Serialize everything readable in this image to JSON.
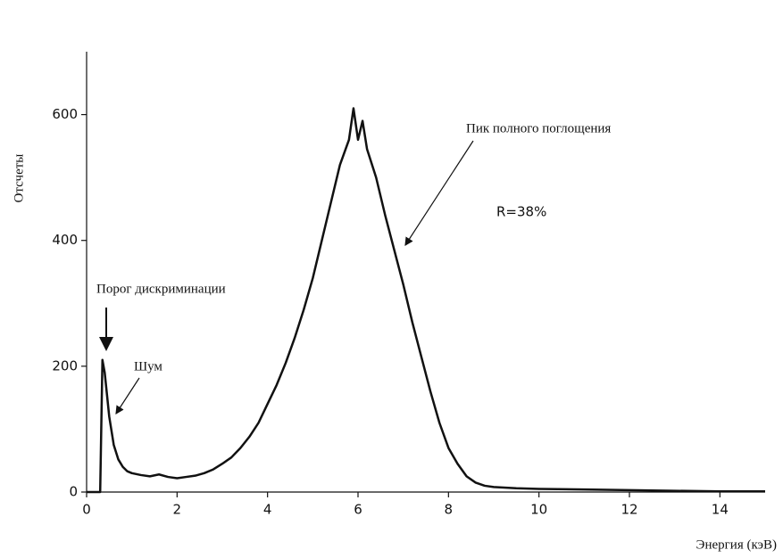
{
  "chart_data": {
    "type": "line",
    "x_label": "Энергия (кэВ)",
    "y_label": "Отсчеты",
    "x": [
      0,
      0.1,
      0.2,
      0.3,
      0.35,
      0.4,
      0.5,
      0.6,
      0.7,
      0.8,
      0.9,
      1.0,
      1.2,
      1.4,
      1.6,
      1.8,
      2.0,
      2.2,
      2.4,
      2.6,
      2.8,
      3.0,
      3.2,
      3.4,
      3.6,
      3.8,
      4.0,
      4.2,
      4.4,
      4.6,
      4.8,
      5.0,
      5.2,
      5.4,
      5.6,
      5.8,
      5.9,
      6.0,
      6.1,
      6.2,
      6.4,
      6.6,
      6.8,
      7.0,
      7.2,
      7.4,
      7.6,
      7.8,
      8.0,
      8.2,
      8.4,
      8.6,
      8.8,
      9.0,
      9.5,
      10,
      11,
      12,
      13,
      14,
      15
    ],
    "series": [
      {
        "color": "#111111",
        "values": [
          0,
          0,
          0,
          0,
          210,
          190,
          120,
          75,
          52,
          40,
          33,
          30,
          27,
          25,
          28,
          24,
          22,
          24,
          26,
          30,
          36,
          45,
          55,
          70,
          88,
          110,
          140,
          170,
          205,
          245,
          290,
          340,
          400,
          460,
          520,
          560,
          610,
          560,
          590,
          545,
          500,
          440,
          385,
          330,
          270,
          215,
          160,
          110,
          70,
          45,
          25,
          15,
          10,
          8,
          6,
          5,
          4,
          3,
          2,
          1,
          1
        ]
      }
    ],
    "xlim": [
      0,
      15
    ],
    "ylim": [
      0,
      700
    ],
    "xticks": [
      0,
      2,
      4,
      6,
      8,
      10,
      12,
      14
    ],
    "yticks": [
      0,
      200,
      400,
      600
    ],
    "annotations": [
      "Порог дискриминации",
      "Шум",
      "Пик полного поглощения",
      "R=38%"
    ]
  }
}
